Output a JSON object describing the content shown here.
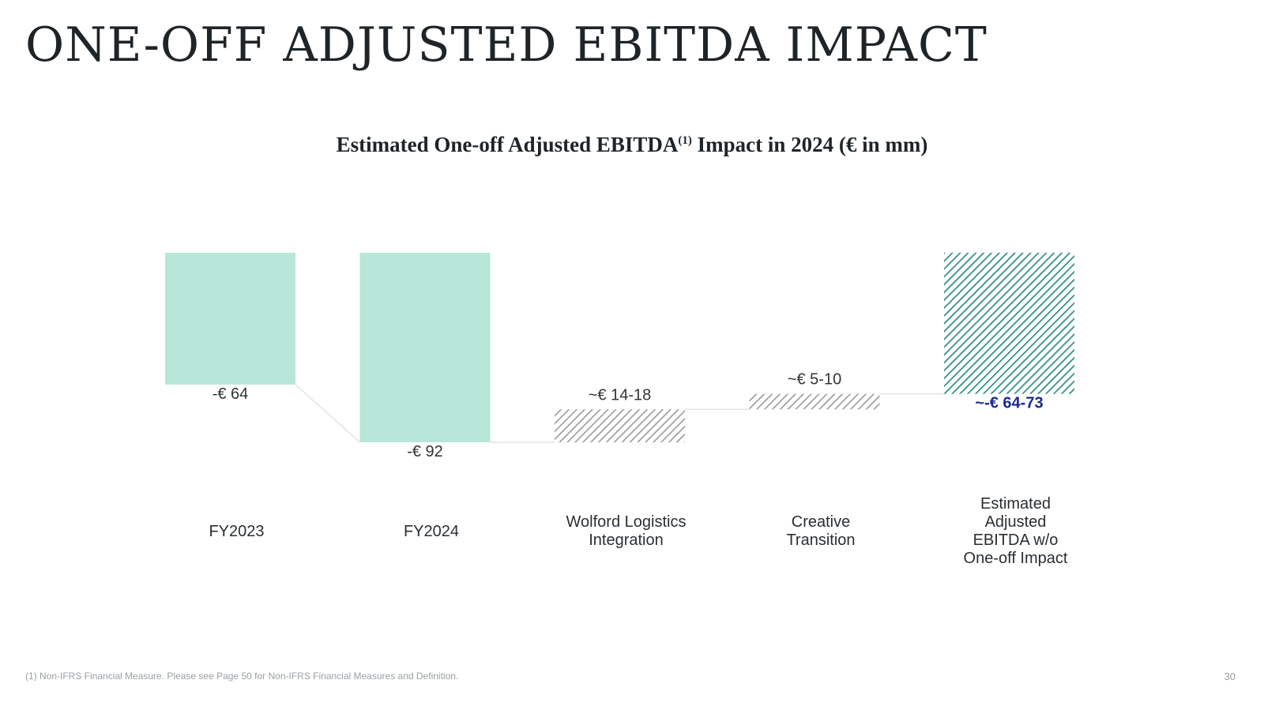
{
  "page": {
    "title": "ONE-OFF ADJUSTED EBITDA IMPACT",
    "number": "30"
  },
  "chart_title": {
    "text": "Estimated One-off Adjusted EBITDA",
    "sup": "(1)",
    "suffix": " Impact in 2024 (€ in mm)"
  },
  "footnote": "(1) Non-IFRS Financial Measure. Please see Page 50 for Non-IFRS Financial Measures and Definition.",
  "chart_data": {
    "type": "waterfall",
    "title": "Estimated One-off Adjusted EBITDA(1) Impact in 2024 (€ in mm)",
    "unit": "€ mm",
    "categories": [
      "FY2023",
      "FY2024",
      "Wolford Logistics Integration",
      "Creative Transition",
      "Estimated Adjusted EBITDA w/o One-off Impact"
    ],
    "category_labels": [
      [
        "FY2023"
      ],
      [
        "FY2024"
      ],
      [
        "Wolford Logistics",
        "Integration"
      ],
      [
        "Creative",
        "Transition"
      ],
      [
        "Estimated",
        "Adjusted",
        "EBITDA w/o",
        "One-off Impact"
      ]
    ],
    "bars": [
      {
        "label": "-€ 64",
        "start": 0,
        "end": -64,
        "kind": "total",
        "color": "#b8e6d8",
        "pattern": "solid"
      },
      {
        "label": "-€ 92",
        "start": 0,
        "end": -92,
        "kind": "total",
        "color": "#b8e6d8",
        "pattern": "solid"
      },
      {
        "label": "~€ 14-18",
        "start": -92,
        "end": -76,
        "kind": "delta",
        "color": "#9a9a9a",
        "pattern": "hatched"
      },
      {
        "label": "~€ 5-10",
        "start": -76,
        "end": -68.5,
        "kind": "delta",
        "color": "#9a9a9a",
        "pattern": "hatched"
      },
      {
        "label": "~-€ 64-73",
        "start": 0,
        "end": -68.5,
        "kind": "total",
        "color": "#2e8b80",
        "pattern": "hatched",
        "highlight_color": "#1a2a8f"
      }
    ],
    "ylim": [
      -92,
      0
    ]
  }
}
